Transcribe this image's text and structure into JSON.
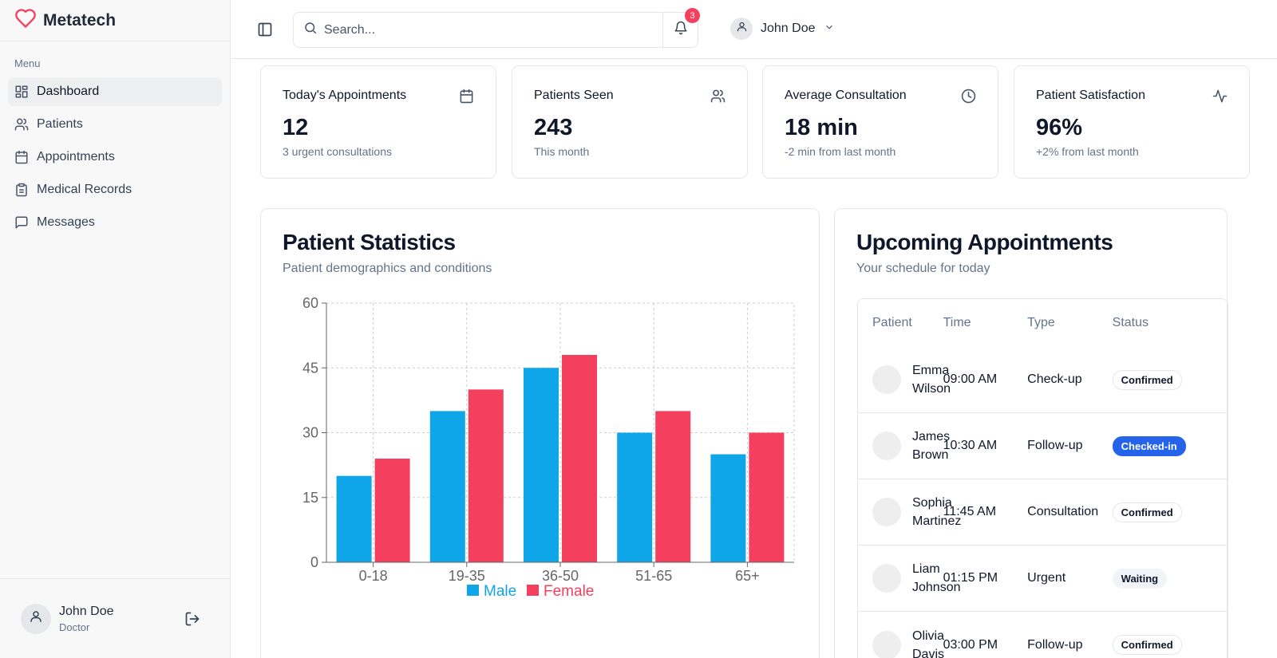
{
  "brand": {
    "name": "Metatech"
  },
  "sidebar": {
    "menu_label": "Menu",
    "items": [
      {
        "label": "Dashboard",
        "icon": "dashboard-icon"
      },
      {
        "label": "Patients",
        "icon": "users-icon"
      },
      {
        "label": "Appointments",
        "icon": "calendar-icon"
      },
      {
        "label": "Medical Records",
        "icon": "clipboard-icon"
      },
      {
        "label": "Messages",
        "icon": "message-icon"
      }
    ],
    "user": {
      "name": "John Doe",
      "role": "Doctor"
    }
  },
  "header": {
    "search_placeholder": "Search...",
    "notification_count": "3",
    "user_name": "John Doe"
  },
  "stats": [
    {
      "title": "Today's Appointments",
      "value": "12",
      "sub": "3 urgent consultations",
      "icon": "calendar-icon"
    },
    {
      "title": "Patients Seen",
      "value": "243",
      "sub": "This month",
      "icon": "users-icon"
    },
    {
      "title": "Average Consultation",
      "value": "18 min",
      "sub": "-2 min from last month",
      "icon": "clock-icon"
    },
    {
      "title": "Patient Satisfaction",
      "value": "96%",
      "sub": "+2% from last month",
      "icon": "activity-icon"
    }
  ],
  "patient_stats": {
    "title": "Patient Statistics",
    "subtitle": "Patient demographics and conditions"
  },
  "chart_data": {
    "type": "bar",
    "categories": [
      "0-18",
      "19-35",
      "36-50",
      "51-65",
      "65+"
    ],
    "series": [
      {
        "name": "Male",
        "values": [
          20,
          35,
          45,
          30,
          25
        ],
        "color": "#0ea5e9"
      },
      {
        "name": "Female",
        "values": [
          24,
          40,
          48,
          35,
          30
        ],
        "color": "#f43f5e"
      }
    ],
    "yticks": [
      "0",
      "15",
      "30",
      "45",
      "60"
    ],
    "ylim": [
      0,
      60
    ],
    "grid": true,
    "legend": "bottom-center"
  },
  "appointments": {
    "title": "Upcoming Appointments",
    "subtitle": "Your schedule for today",
    "columns": [
      "Patient",
      "Time",
      "Type",
      "Status"
    ],
    "rows": [
      {
        "patient": "Emma Wilson",
        "time": "09:00 AM",
        "type": "Check-up",
        "status": "Confirmed"
      },
      {
        "patient": "James Brown",
        "time": "10:30 AM",
        "type": "Follow-up",
        "status": "Checked-in"
      },
      {
        "patient": "Sophia Martinez",
        "time": "11:45 AM",
        "type": "Consultation",
        "status": "Confirmed"
      },
      {
        "patient": "Liam Johnson",
        "time": "01:15 PM",
        "type": "Urgent",
        "status": "Waiting"
      },
      {
        "patient": "Olivia Davis",
        "time": "03:00 PM",
        "type": "Follow-up",
        "status": "Confirmed"
      }
    ]
  },
  "colors": {
    "accent": "#f43f5e",
    "male": "#0ea5e9",
    "female": "#f43f5e",
    "checked_in": "#2563eb"
  }
}
